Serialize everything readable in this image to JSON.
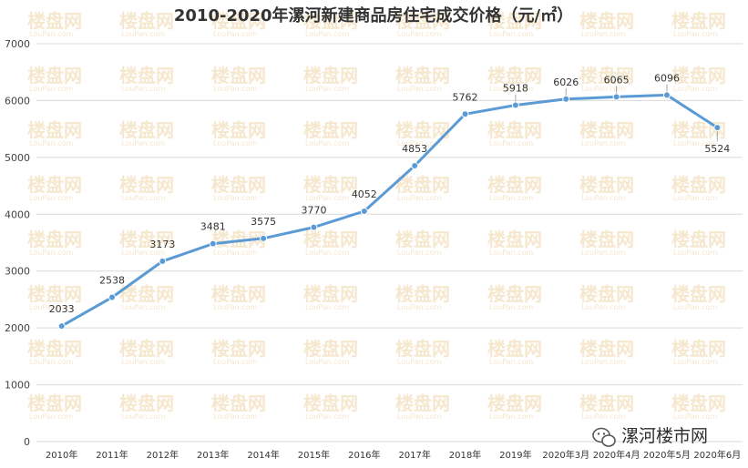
{
  "chart_data": {
    "type": "line",
    "title": "2010-2020年漯河新建商品房住宅成交价格（元/㎡）",
    "categories": [
      "2010年",
      "2011年",
      "2012年",
      "2013年",
      "2014年",
      "2015年",
      "2016年",
      "2017年",
      "2018年",
      "2019年",
      "2020年3月",
      "2020年4月",
      "2020年5月",
      "2020年6月"
    ],
    "series": [
      {
        "values": [
          2033,
          2538,
          3173,
          3481,
          3575,
          3770,
          4052,
          4853,
          5762,
          5918,
          6026,
          6065,
          6096,
          5524
        ]
      }
    ],
    "ylim": [
      0,
      7000
    ],
    "yticks": [
      0,
      1000,
      2000,
      3000,
      4000,
      5000,
      6000,
      7000
    ],
    "grid": true,
    "line_color": "#5b9bd5",
    "grid_color": "#d9d9d9"
  },
  "watermark": {
    "cn": "楼盘网",
    "en": "LouPan.com"
  },
  "brand": {
    "text": "漯河楼市网",
    "icon": "wechat-icon"
  }
}
